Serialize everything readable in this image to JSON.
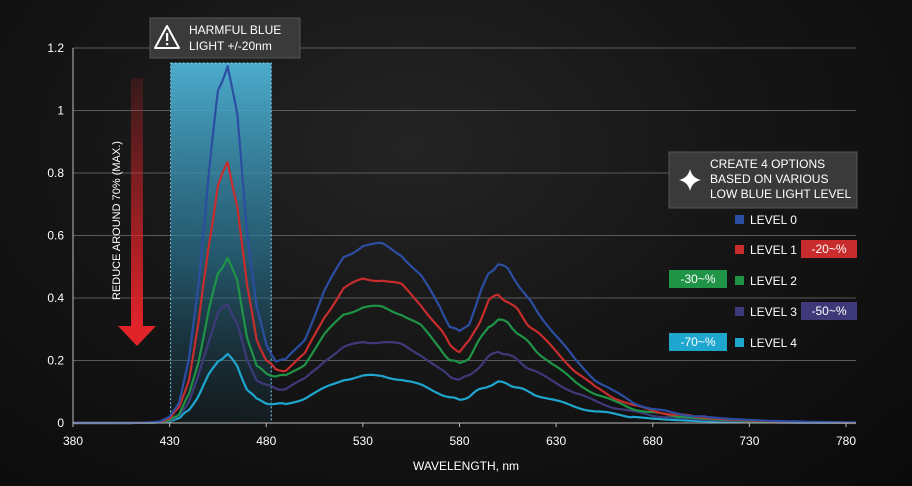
{
  "chart_data": {
    "type": "line",
    "xlabel": "WAVELENGTH, nm",
    "ylabel": "",
    "xlim": [
      380,
      785
    ],
    "ylim": [
      0,
      1.2
    ],
    "x_ticks": [
      380,
      430,
      480,
      530,
      580,
      630,
      680,
      730,
      780
    ],
    "y_ticks": [
      0,
      0.2,
      0.4,
      0.6,
      0.8,
      1,
      1.2
    ],
    "y_tick_labels": [
      "0",
      "0.2",
      "0.4",
      "0.6",
      "0.8",
      "1",
      "1.2"
    ],
    "grid": "horizontal",
    "x": [
      380,
      410,
      420,
      425,
      430,
      435,
      440,
      445,
      450,
      455,
      460,
      465,
      470,
      475,
      480,
      485,
      490,
      500,
      510,
      520,
      530,
      540,
      550,
      560,
      570,
      575,
      580,
      585,
      590,
      595,
      600,
      605,
      610,
      615,
      620,
      630,
      640,
      650,
      660,
      670,
      680,
      690,
      700,
      710,
      720,
      730,
      740,
      760,
      785
    ],
    "series": [
      {
        "name": "LEVEL 0",
        "color": "#2c4ea2",
        "values": [
          0.0,
          0.0,
          0.002,
          0.005,
          0.02,
          0.07,
          0.2,
          0.45,
          0.78,
          1.06,
          1.15,
          0.98,
          0.62,
          0.37,
          0.25,
          0.2,
          0.2,
          0.27,
          0.42,
          0.53,
          0.57,
          0.57,
          0.54,
          0.47,
          0.37,
          0.31,
          0.29,
          0.32,
          0.4,
          0.48,
          0.51,
          0.49,
          0.45,
          0.4,
          0.36,
          0.28,
          0.2,
          0.14,
          0.1,
          0.065,
          0.045,
          0.032,
          0.025,
          0.018,
          0.013,
          0.01,
          0.007,
          0.004,
          0.002
        ]
      },
      {
        "name": "LEVEL 1",
        "color": "#c82c2c",
        "values": [
          0.0,
          0.0,
          0.002,
          0.004,
          0.014,
          0.05,
          0.14,
          0.32,
          0.56,
          0.76,
          0.83,
          0.7,
          0.44,
          0.27,
          0.2,
          0.17,
          0.17,
          0.22,
          0.34,
          0.43,
          0.46,
          0.46,
          0.44,
          0.38,
          0.3,
          0.25,
          0.23,
          0.26,
          0.32,
          0.39,
          0.41,
          0.39,
          0.36,
          0.32,
          0.29,
          0.23,
          0.165,
          0.115,
          0.082,
          0.055,
          0.04,
          0.028,
          0.021,
          0.015,
          0.011,
          0.008,
          0.006,
          0.003,
          0.001
        ]
      },
      {
        "name": "LEVEL 2",
        "color": "#1f9447",
        "values": [
          0.0,
          0.0,
          0.001,
          0.003,
          0.009,
          0.03,
          0.09,
          0.2,
          0.35,
          0.48,
          0.53,
          0.45,
          0.28,
          0.18,
          0.16,
          0.15,
          0.15,
          0.19,
          0.28,
          0.35,
          0.37,
          0.37,
          0.35,
          0.31,
          0.24,
          0.2,
          0.19,
          0.21,
          0.26,
          0.31,
          0.33,
          0.32,
          0.29,
          0.26,
          0.23,
          0.18,
          0.13,
          0.095,
          0.068,
          0.046,
          0.033,
          0.023,
          0.017,
          0.012,
          0.009,
          0.006,
          0.004,
          0.002,
          0.001
        ]
      },
      {
        "name": "LEVEL 3",
        "color": "#3e3a7a",
        "values": [
          0.0,
          0.0,
          0.001,
          0.002,
          0.007,
          0.025,
          0.07,
          0.15,
          0.26,
          0.35,
          0.38,
          0.32,
          0.2,
          0.14,
          0.12,
          0.11,
          0.11,
          0.14,
          0.2,
          0.24,
          0.26,
          0.26,
          0.25,
          0.22,
          0.17,
          0.15,
          0.14,
          0.15,
          0.18,
          0.21,
          0.23,
          0.22,
          0.2,
          0.18,
          0.16,
          0.13,
          0.095,
          0.07,
          0.05,
          0.035,
          0.025,
          0.018,
          0.013,
          0.009,
          0.007,
          0.005,
          0.003,
          0.001,
          0.0
        ]
      },
      {
        "name": "LEVEL 4",
        "color": "#1fa6cf",
        "values": [
          0.0,
          0.0,
          0.001,
          0.002,
          0.005,
          0.016,
          0.04,
          0.09,
          0.15,
          0.2,
          0.22,
          0.18,
          0.11,
          0.075,
          0.065,
          0.06,
          0.06,
          0.08,
          0.11,
          0.14,
          0.15,
          0.15,
          0.14,
          0.12,
          0.095,
          0.08,
          0.075,
          0.085,
          0.105,
          0.12,
          0.13,
          0.125,
          0.115,
          0.1,
          0.09,
          0.07,
          0.052,
          0.038,
          0.028,
          0.02,
          0.014,
          0.01,
          0.007,
          0.005,
          0.004,
          0.003,
          0.002,
          0.001,
          0.0
        ]
      }
    ],
    "highlight_band": {
      "x_range": [
        430,
        480
      ]
    },
    "annotations": {
      "harmful_box": [
        "HARMFUL BLUE",
        "LIGHT +/-20nm"
      ],
      "options_box": [
        "CREATE 4 OPTIONS",
        "BASED ON VARIOUS",
        "LOW BLUE LIGHT LEVEL"
      ],
      "reduce_label": "REDUCE AROUND 70% (MAX.)",
      "badges": [
        {
          "series": "LEVEL 1",
          "label": "-20~%",
          "color": "#c82c2c"
        },
        {
          "series": "LEVEL 2",
          "label": "-30~%",
          "color": "#1f9447"
        },
        {
          "series": "LEVEL 3",
          "label": "-50~%",
          "color": "#3e3a7a"
        },
        {
          "series": "LEVEL 4",
          "label": "-70~%",
          "color": "#1fa6cf"
        }
      ]
    },
    "colors": {
      "grid": "#5a5a5a",
      "band": "#4fb3d6",
      "arrow": "#e0242a",
      "box_bg": "#3a3a3a"
    }
  }
}
